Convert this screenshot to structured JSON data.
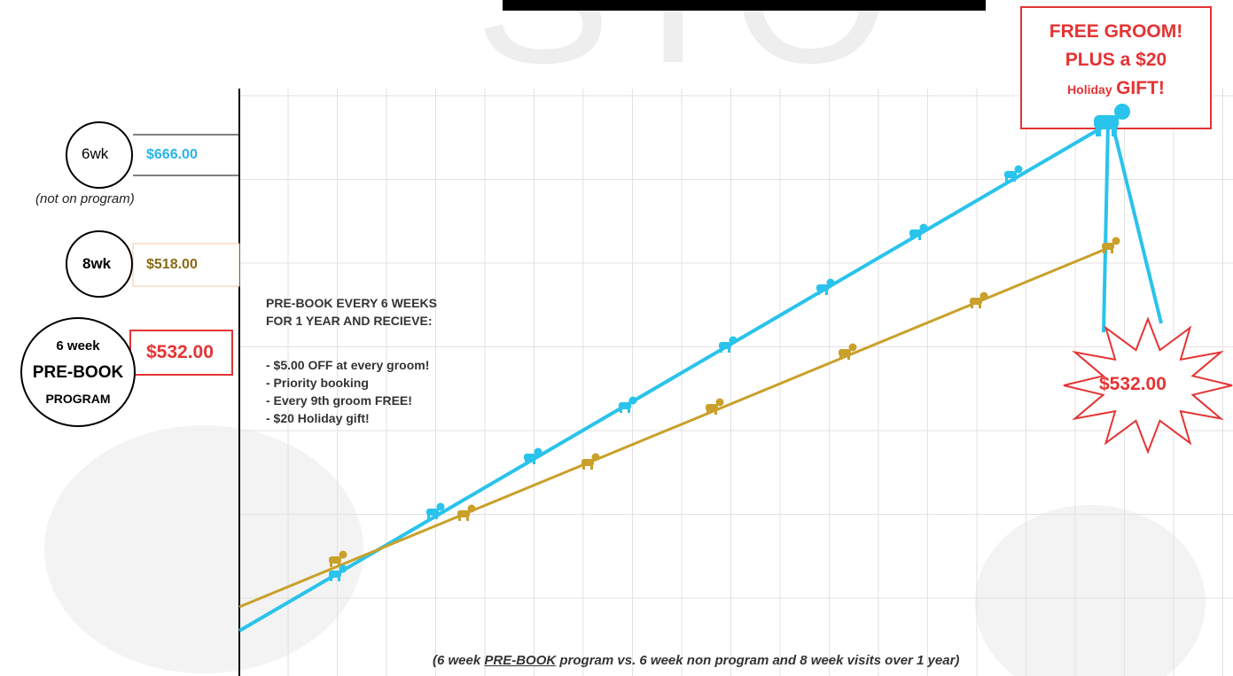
{
  "watermark": "STO",
  "plans": [
    {
      "badge": [
        "6wk"
      ],
      "price": "$666.00",
      "note": "(not on program)"
    },
    {
      "badge": [
        "8wk"
      ],
      "price": "$518.00"
    },
    {
      "badge": [
        "6 week",
        "PRE-BOOK",
        "PROGRAM"
      ],
      "price": "$532.00"
    }
  ],
  "promo": {
    "heading": [
      "PRE-BOOK EVERY 6 WEEKS",
      "FOR 1 YEAR AND RECIEVE:"
    ],
    "bullets": [
      "- $5.00 OFF at every groom!",
      "- Priority booking",
      "- Every 9th groom FREE!",
      "- $20 Holiday gift!"
    ]
  },
  "callout": {
    "line1": "FREE GROOM!",
    "line2": "PLUS a $20",
    "small": "Holiday",
    "big": "GIFT!"
  },
  "burst": "$532.00",
  "caption": {
    "before": "(6 week ",
    "underlined": "PRE-BOOK",
    "after": " program vs. 6 week non program and  8 week visits over 1 year)"
  }
}
